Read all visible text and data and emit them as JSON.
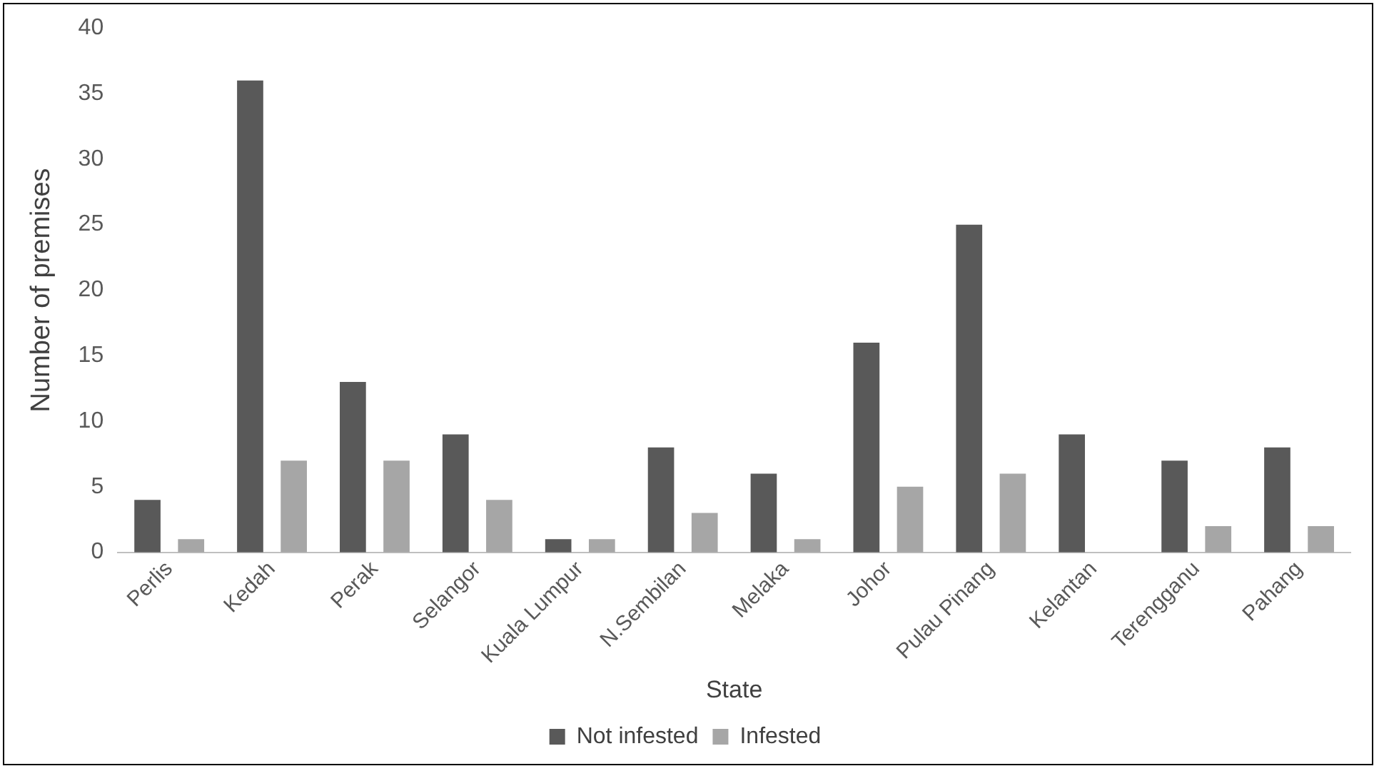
{
  "chart_data": {
    "type": "bar",
    "xlabel": "State",
    "ylabel": "Number of premises",
    "categories": [
      "Perlis",
      "Kedah",
      "Perak",
      "Selangor",
      "Kuala Lumpur",
      "N.Sembilan",
      "Melaka",
      "Johor",
      "Pulau Pinang",
      "Kelantan",
      "Terengganu",
      "Pahang"
    ],
    "series": [
      {
        "name": "Not infested",
        "color": "#595959",
        "values": [
          4,
          36,
          13,
          9,
          1,
          8,
          6,
          16,
          25,
          9,
          7,
          8
        ]
      },
      {
        "name": "Infested",
        "color": "#a6a6a6",
        "values": [
          1,
          7,
          7,
          4,
          1,
          3,
          1,
          5,
          6,
          0,
          2,
          2
        ]
      }
    ],
    "ylim": [
      0,
      40
    ],
    "yticks": [
      0,
      5,
      10,
      15,
      20,
      25,
      30,
      35,
      40
    ],
    "legend": "bottom"
  }
}
